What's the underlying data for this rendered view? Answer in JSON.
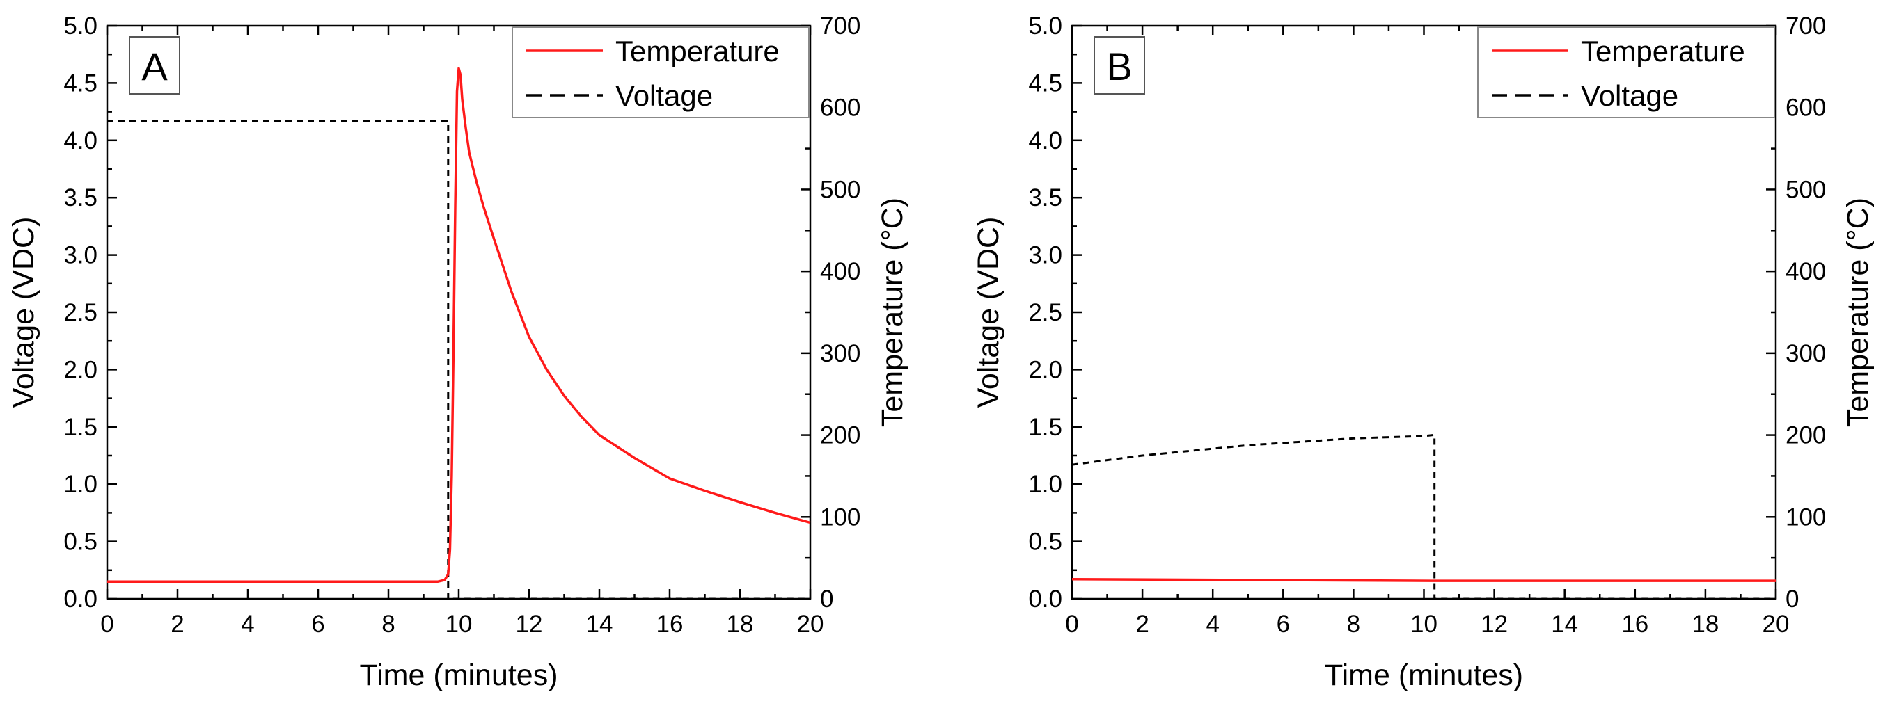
{
  "chart_data": [
    {
      "type": "line",
      "panel_label": "A",
      "xlabel": "Time (minutes)",
      "ylabel": "Voltage (VDC)",
      "y2label": "Temperature (°C)",
      "xlim": [
        0,
        20
      ],
      "ylim": [
        0,
        5.0
      ],
      "y2lim": [
        0,
        700
      ],
      "xticks": [
        "0",
        "2",
        "4",
        "6",
        "8",
        "10",
        "12",
        "14",
        "16",
        "18",
        "20"
      ],
      "yticks": [
        "0.0",
        "0.5",
        "1.0",
        "1.5",
        "2.0",
        "2.5",
        "3.0",
        "3.5",
        "4.0",
        "4.5",
        "5.0"
      ],
      "y2ticks": [
        "0",
        "100",
        "200",
        "300",
        "400",
        "500",
        "600",
        "700"
      ],
      "legend_position": "top-right",
      "series": [
        {
          "name": "Temperature",
          "axis": "right",
          "style": "solid",
          "color": "#ff1a1a",
          "x": [
            0,
            9.4,
            9.6,
            9.7,
            9.75,
            9.8,
            9.85,
            9.9,
            9.95,
            10.0,
            10.05,
            10.1,
            10.2,
            10.3,
            10.5,
            10.7,
            11.0,
            11.5,
            12.0,
            12.5,
            13.0,
            13.5,
            14.0,
            15.0,
            16.0,
            17.0,
            18.0,
            19.0,
            20.0
          ],
          "y": [
            21,
            21,
            23,
            30,
            60,
            150,
            300,
            480,
            620,
            648,
            640,
            610,
            575,
            545,
            510,
            480,
            440,
            375,
            320,
            280,
            248,
            222,
            200,
            172,
            147,
            132,
            118,
            105,
            93
          ]
        },
        {
          "name": "Voltage",
          "axis": "left",
          "style": "dashed",
          "color": "#000000",
          "x": [
            0,
            9.7,
            9.7,
            20
          ],
          "y": [
            4.17,
            4.17,
            0.0,
            0.0
          ]
        }
      ]
    },
    {
      "type": "line",
      "panel_label": "B",
      "xlabel": "Time (minutes)",
      "ylabel": "Voltage (VDC)",
      "y2label": "Temperature (°C)",
      "xlim": [
        0,
        20
      ],
      "ylim": [
        0,
        5.0
      ],
      "y2lim": [
        0,
        700
      ],
      "xticks": [
        "0",
        "2",
        "4",
        "6",
        "8",
        "10",
        "12",
        "14",
        "16",
        "18",
        "20"
      ],
      "yticks": [
        "0.0",
        "0.5",
        "1.0",
        "1.5",
        "2.0",
        "2.5",
        "3.0",
        "3.5",
        "4.0",
        "4.5",
        "5.0"
      ],
      "y2ticks": [
        "0",
        "100",
        "200",
        "300",
        "400",
        "500",
        "600",
        "700"
      ],
      "legend_position": "top-right",
      "series": [
        {
          "name": "Temperature",
          "axis": "right",
          "style": "solid",
          "color": "#ff1a1a",
          "x": [
            0,
            5,
            10.2,
            10.5,
            20
          ],
          "y": [
            24,
            23,
            22,
            22,
            22
          ]
        },
        {
          "name": "Voltage",
          "axis": "left",
          "style": "dashed",
          "color": "#000000",
          "x": [
            0,
            1,
            2,
            3,
            4,
            5,
            6,
            7,
            8,
            9,
            10,
            10.3,
            10.3,
            20
          ],
          "y": [
            1.17,
            1.21,
            1.25,
            1.28,
            1.31,
            1.34,
            1.36,
            1.38,
            1.4,
            1.41,
            1.42,
            1.43,
            0.0,
            0.0
          ]
        }
      ]
    }
  ]
}
